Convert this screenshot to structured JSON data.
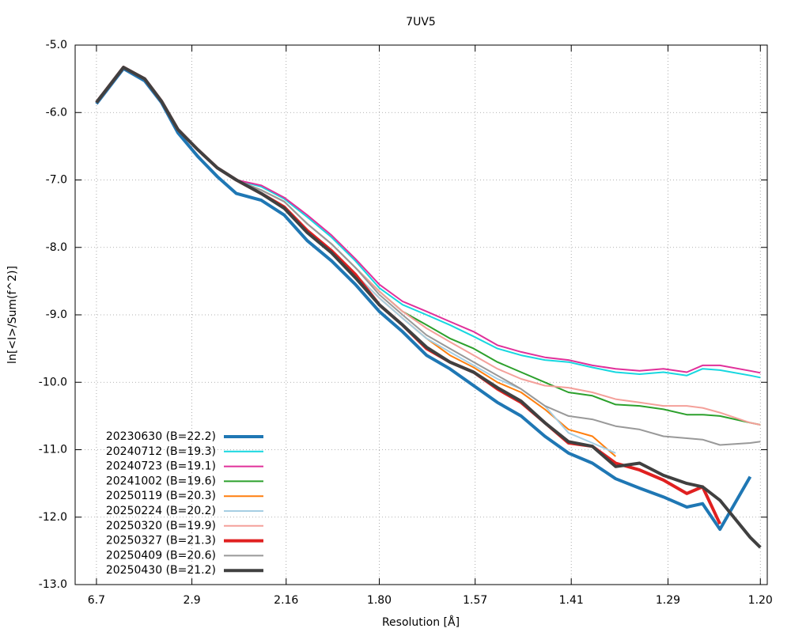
{
  "chart_data": {
    "type": "line",
    "title": "7UV5",
    "xlabel": "Resolution [Å]",
    "ylabel": "ln[<I>/Sum(f^2)]",
    "xscale": "inverse-square",
    "xlim": [
      37.8,
      1.194
    ],
    "xticks": [
      6.7,
      2.9,
      2.16,
      {
        "value": 1.8,
        "label": "1.80"
      },
      1.57,
      1.41,
      1.29,
      {
        "value": 1.2,
        "label": "1.20"
      }
    ],
    "ylim": [
      -13,
      -5
    ],
    "yticks": [
      {
        "value": -5,
        "label": "-5.0"
      },
      {
        "value": -6,
        "label": "-6.0"
      },
      {
        "value": -7,
        "label": "-7.0"
      },
      {
        "value": -8,
        "label": "-8.0"
      },
      {
        "value": -9,
        "label": "-9.0"
      },
      {
        "value": -10,
        "label": "-10.0"
      },
      {
        "value": -11,
        "label": "-11.0"
      },
      {
        "value": -12,
        "label": "-12.0"
      },
      {
        "value": -13,
        "label": "-13.0"
      }
    ],
    "grid": true,
    "legend": "bottom-left",
    "x": [
      6.7,
      4.49,
      3.75,
      3.37,
      3.09,
      2.83,
      2.63,
      2.47,
      2.3,
      2.17,
      2.06,
      1.96,
      1.875,
      1.8,
      1.735,
      1.675,
      1.622,
      1.573,
      1.528,
      1.487,
      1.449,
      1.414,
      1.381,
      1.351,
      1.322,
      1.295,
      1.27,
      1.254,
      1.237,
      1.209,
      1.2
    ],
    "series": [
      {
        "name": "20230630 (B=22.2)",
        "color": "#1f77b4",
        "line_width": 4,
        "values": [
          -5.87,
          -5.35,
          -5.53,
          -5.85,
          -6.3,
          -6.65,
          -6.95,
          -7.2,
          -7.3,
          -7.52,
          -7.9,
          -8.2,
          -8.55,
          -8.95,
          -9.25,
          -9.6,
          -9.8,
          -10.05,
          -10.3,
          -10.5,
          -10.8,
          -11.05,
          -11.2,
          -11.43,
          -11.57,
          -11.7,
          -11.85,
          -11.8,
          -12.18,
          -11.4,
          null
        ]
      },
      {
        "name": "20240712 (B=19.3)",
        "color": "#17d7e0",
        "line_width": 2,
        "values": [
          -5.85,
          -5.33,
          -5.5,
          -5.83,
          -6.25,
          -6.55,
          -6.82,
          -7.0,
          -7.1,
          -7.28,
          -7.55,
          -7.85,
          -8.2,
          -8.6,
          -8.85,
          -9.0,
          -9.15,
          -9.32,
          -9.5,
          -9.6,
          -9.67,
          -9.7,
          -9.78,
          -9.85,
          -9.88,
          -9.85,
          -9.9,
          -9.8,
          -9.82,
          -9.9,
          -9.93
        ]
      },
      {
        "name": "20240723 (B=19.1)",
        "color": "#e0309a",
        "line_width": 2,
        "values": [
          -5.85,
          -5.33,
          -5.5,
          -5.83,
          -6.25,
          -6.55,
          -6.82,
          -7.0,
          -7.08,
          -7.26,
          -7.52,
          -7.82,
          -8.17,
          -8.55,
          -8.8,
          -8.95,
          -9.1,
          -9.25,
          -9.45,
          -9.55,
          -9.63,
          -9.67,
          -9.75,
          -9.8,
          -9.83,
          -9.8,
          -9.85,
          -9.75,
          -9.75,
          -9.83,
          -9.86
        ]
      },
      {
        "name": "20241002 (B=19.6)",
        "color": "#2ca02c",
        "line_width": 2,
        "values": [
          -5.85,
          -5.33,
          -5.5,
          -5.83,
          -6.25,
          -6.55,
          -6.82,
          -7.0,
          -7.15,
          -7.32,
          -7.65,
          -7.95,
          -8.3,
          -8.65,
          -8.95,
          -9.15,
          -9.35,
          -9.5,
          -9.7,
          -9.85,
          -10.0,
          -10.15,
          -10.2,
          -10.33,
          -10.35,
          -10.4,
          -10.48,
          -10.48,
          -10.5,
          -10.6,
          -10.63
        ]
      },
      {
        "name": "20250119 (B=20.3)",
        "color": "#ff7f0e",
        "line_width": 2,
        "values": [
          -5.85,
          -5.33,
          -5.5,
          -5.83,
          -6.25,
          -6.55,
          -6.82,
          -7.0,
          -7.2,
          -7.4,
          -7.75,
          -8.05,
          -8.4,
          -8.75,
          -9.05,
          -9.35,
          -9.6,
          -9.78,
          -10.0,
          -10.15,
          -10.4,
          -10.7,
          -10.8,
          -11.1,
          null,
          null,
          null,
          null,
          null,
          null,
          null
        ]
      },
      {
        "name": "20250224 (B=20.2)",
        "color": "#a6cee3",
        "line_width": 2,
        "values": [
          -5.85,
          -5.33,
          -5.5,
          -5.83,
          -6.25,
          -6.55,
          -6.82,
          -7.0,
          -7.2,
          -7.4,
          -7.75,
          -8.05,
          -8.4,
          -8.75,
          -9.05,
          -9.35,
          -9.55,
          -9.75,
          -9.95,
          -10.1,
          -10.35,
          -10.75,
          -10.9,
          -11.05,
          null,
          null,
          null,
          null,
          null,
          null,
          null
        ]
      },
      {
        "name": "20250320 (B=19.9)",
        "color": "#f4a09a",
        "line_width": 2,
        "values": [
          -5.85,
          -5.33,
          -5.5,
          -5.83,
          -6.25,
          -6.55,
          -6.82,
          -7.0,
          -7.15,
          -7.32,
          -7.65,
          -7.95,
          -8.3,
          -8.65,
          -8.95,
          -9.2,
          -9.4,
          -9.6,
          -9.8,
          -9.95,
          -10.05,
          -10.08,
          -10.15,
          -10.25,
          -10.3,
          -10.35,
          -10.35,
          -10.38,
          -10.45,
          -10.6,
          -10.63
        ]
      },
      {
        "name": "20250327 (B=21.3)",
        "color": "#e02020",
        "line_width": 4,
        "values": [
          -5.85,
          -5.33,
          -5.5,
          -5.83,
          -6.25,
          -6.55,
          -6.82,
          -7.0,
          -7.2,
          -7.4,
          -7.75,
          -8.05,
          -8.4,
          -8.85,
          -9.15,
          -9.5,
          -9.7,
          -9.85,
          -10.1,
          -10.3,
          -10.6,
          -10.9,
          -10.95,
          -11.2,
          -11.3,
          -11.45,
          -11.65,
          -11.55,
          -12.1,
          null,
          null
        ]
      },
      {
        "name": "20250409 (B=20.6)",
        "color": "#999999",
        "line_width": 2,
        "values": [
          -5.85,
          -5.33,
          -5.5,
          -5.83,
          -6.25,
          -6.55,
          -6.82,
          -7.0,
          -7.15,
          -7.32,
          -7.65,
          -7.95,
          -8.3,
          -8.7,
          -9.0,
          -9.3,
          -9.5,
          -9.7,
          -9.9,
          -10.1,
          -10.35,
          -10.5,
          -10.55,
          -10.65,
          -10.7,
          -10.8,
          -10.83,
          -10.85,
          -10.93,
          -10.9,
          -10.88
        ]
      },
      {
        "name": "20250430 (B=21.2)",
        "color": "#404040",
        "line_width": 4,
        "values": [
          -5.85,
          -5.33,
          -5.5,
          -5.83,
          -6.25,
          -6.55,
          -6.82,
          -7.0,
          -7.2,
          -7.42,
          -7.78,
          -8.08,
          -8.45,
          -8.85,
          -9.15,
          -9.48,
          -9.7,
          -9.85,
          -10.08,
          -10.28,
          -10.6,
          -10.88,
          -10.95,
          -11.25,
          -11.2,
          -11.38,
          -11.5,
          -11.55,
          -11.75,
          -12.3,
          -12.45
        ]
      }
    ]
  }
}
